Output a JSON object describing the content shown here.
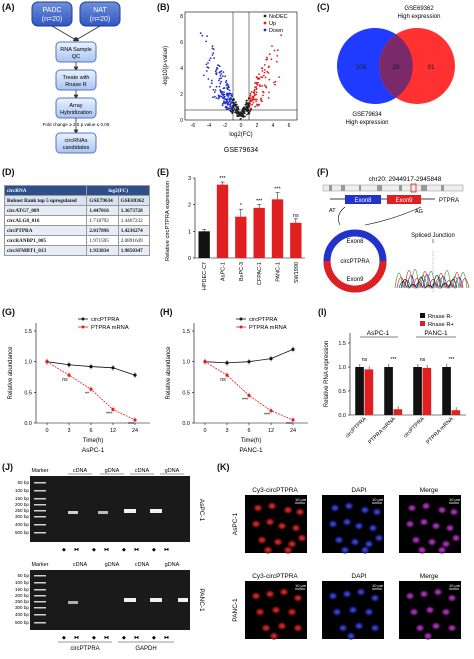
{
  "panels": {
    "A": {
      "label": "(A)",
      "groups": [
        {
          "name": "PADC",
          "n": "(n=20)"
        },
        {
          "name": "NAT",
          "n": "(n=20)"
        }
      ],
      "steps": [
        "RNA Sample QC",
        "Treate with Rnase R",
        "Array Hybridization",
        "circRNAs candidates"
      ],
      "criteria": "Fold change ≥ 2.0          p value ≤ 0.05"
    },
    "B": {
      "label": "(B)",
      "legend": [
        "NoDEC",
        "Up",
        "Down"
      ],
      "colors": {
        "nodec": "#222222",
        "up": "#e02020",
        "down": "#2030d0"
      },
      "ylabel": "-log10(p-value)",
      "xlabel": "log2(FC)",
      "caption": "GSE79634",
      "xticks": [
        "-6",
        "-4",
        "-2",
        "0",
        "2",
        "4",
        "6"
      ],
      "yticks": [
        "0",
        "2",
        "4",
        "6",
        "8"
      ]
    },
    "C": {
      "label": "(C)",
      "top_label": [
        "GSE69362",
        "High expression"
      ],
      "bottom_label": [
        "GSE79634",
        "High expression"
      ],
      "left_count": "108",
      "overlap_count": "20",
      "right_count": "91"
    },
    "D": {
      "label": "(D)",
      "header": [
        "circRNA",
        "log2(FC)"
      ],
      "subheader": [
        "Robust Rank top 5 upregulated",
        "GSE79634",
        "GSE69362"
      ],
      "rows": [
        [
          "circATG7_009",
          "1.447016",
          "1.3673728"
        ],
        [
          "circALG8_016",
          "1.718792",
          "1.4467232"
        ],
        [
          "circPTPRA",
          "2.017896",
          "1.4236274"
        ],
        [
          "circRANBP1_005",
          "1.971595",
          "2.0891649"
        ],
        [
          "circSFMBT1_013",
          "1.933834",
          "1.9850347"
        ]
      ]
    },
    "E": {
      "label": "(E)",
      "chart_data": {
        "type": "bar",
        "categories": [
          "HPDEC-C7",
          "AsPC-1",
          "BxPC-3",
          "CFPAC-1",
          "PANC-1",
          "SW1990"
        ],
        "values": [
          1.0,
          2.75,
          1.55,
          1.88,
          2.2,
          1.32
        ],
        "errors": [
          0.06,
          0.1,
          0.28,
          0.12,
          0.25,
          0.15
        ],
        "significance": [
          "",
          "***",
          "*",
          "***",
          "***",
          "ns"
        ],
        "ylabel": "Relative circPTPRA expression",
        "ylim": [
          0,
          3
        ],
        "yticks": [
          "0",
          "1",
          "2",
          "3"
        ],
        "colors": [
          "#111111",
          "#e02020",
          "#e02020",
          "#e02020",
          "#e02020",
          "#e02020"
        ]
      }
    },
    "F": {
      "label": "(F)",
      "locus": "chr20: 2944917-2945848",
      "exon8": "Exon8",
      "exon9": "Exon9",
      "gene": "PTPRA",
      "at": "AT",
      "ag": "AG",
      "circ_labels": [
        "Exon8",
        "circPTPRA",
        "Exon9"
      ],
      "junction": "Spliced Junction"
    },
    "G": {
      "label": "(G)",
      "chart_data": {
        "type": "line",
        "x": [
          "0",
          "3",
          "6",
          "12",
          "24"
        ],
        "series": [
          {
            "name": "circPTPRA",
            "values": [
              1.0,
              0.95,
              0.92,
              0.9,
              0.78
            ]
          },
          {
            "name": "PTPRA mRNA",
            "values": [
              1.0,
              0.78,
              0.55,
              0.22,
              0.05
            ]
          }
        ],
        "significance": [
          "",
          "ns",
          "**",
          "***",
          "***"
        ],
        "xlabel": "Time(h)",
        "ylabel": "Relative abundance",
        "yticks": [
          "0.0",
          "0.5",
          "1.0",
          "1.5"
        ],
        "ylim": [
          0,
          1.5
        ],
        "caption": "AsPC-1"
      }
    },
    "H": {
      "label": "(H)",
      "chart_data": {
        "type": "line",
        "x": [
          "0",
          "3",
          "6",
          "12",
          "24"
        ],
        "series": [
          {
            "name": "circPTPRA",
            "values": [
              1.0,
              0.98,
              1.0,
              1.05,
              1.2
            ]
          },
          {
            "name": "PTPRA mRNA",
            "values": [
              1.0,
              0.78,
              0.45,
              0.2,
              0.05
            ]
          }
        ],
        "significance": [
          "",
          "ns",
          "***",
          "***",
          "***"
        ],
        "xlabel": "Time(h)",
        "ylabel": "Relative abundance",
        "yticks": [
          "0.0",
          "0.5",
          "1.0",
          "1.5"
        ],
        "ylim": [
          0,
          1.5
        ],
        "caption": "PANC-1"
      }
    },
    "I": {
      "label": "(I)",
      "chart_data": {
        "type": "bar",
        "groups": [
          "AsPC-1",
          "PANC-1"
        ],
        "categories": [
          "circPTPRA",
          "PTPRA mRNA",
          "circPTPRA",
          "PTPRA mRNA"
        ],
        "series": [
          {
            "name": "Rnase R-",
            "values": [
              1.0,
              1.0,
              1.0,
              1.0
            ]
          },
          {
            "name": "Rnase R+",
            "values": [
              0.95,
              0.12,
              0.98,
              0.1
            ]
          }
        ],
        "significance": [
          "ns",
          "***",
          "ns",
          "***"
        ],
        "ylabel": "Relative RNA expression",
        "yticks": [
          "0.0",
          "0.5",
          "1.0",
          "1.5"
        ],
        "ylim": [
          0,
          1.5
        ],
        "colors": [
          "#111111",
          "#e02020"
        ]
      }
    },
    "J": {
      "label": "(J)",
      "header": [
        "Marker",
        "cDNA",
        "gDNA",
        "cDNA",
        "gDNA"
      ],
      "ladder": [
        "500 bp",
        "400 bp",
        "300 bp",
        "250 bp",
        "200 bp",
        "150 bp",
        "100 bp",
        "50 bp"
      ],
      "side_top": "AsPC-1",
      "side_bottom": "PANC-1",
      "genes": [
        "circPTPRA",
        "GAPDH"
      ]
    },
    "K": {
      "label": "(K)",
      "cols": [
        "Cy3-circPTPRA",
        "DAPI",
        "Merge"
      ],
      "rows": [
        "AsPC-1",
        "PANC-1"
      ],
      "scale": "10 μm"
    }
  }
}
